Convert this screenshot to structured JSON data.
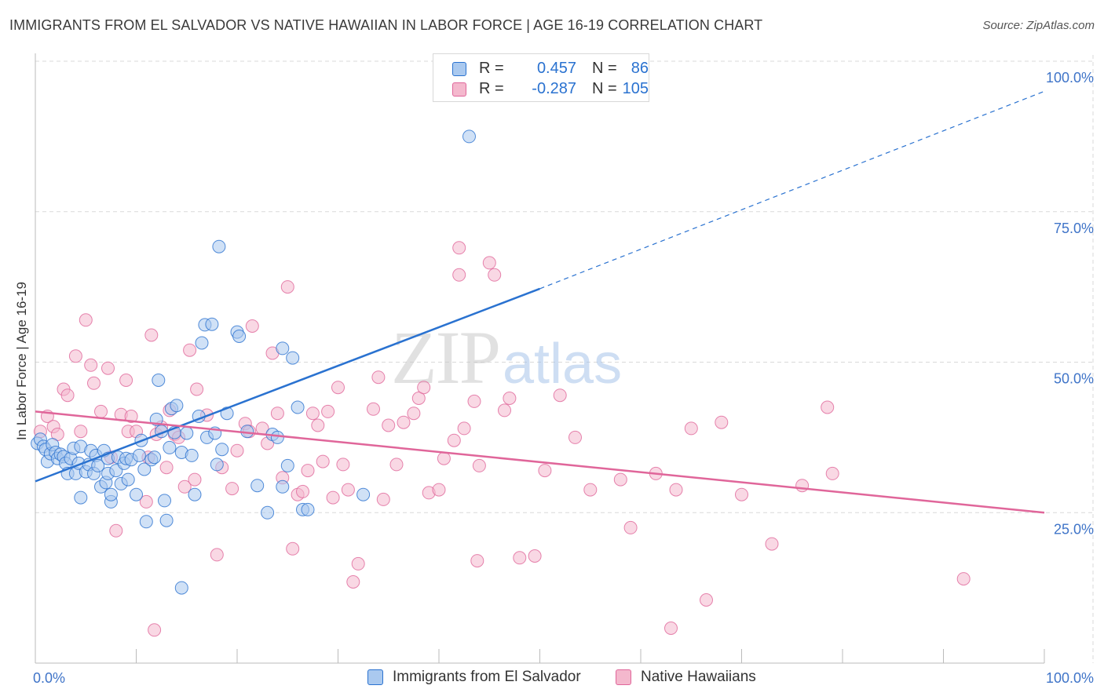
{
  "title": "IMMIGRANTS FROM EL SALVADOR VS NATIVE HAWAIIAN IN LABOR FORCE | AGE 16-19 CORRELATION CHART",
  "source": "Source: ZipAtlas.com",
  "watermark": {
    "zip": "ZIP",
    "atlas": "atlas"
  },
  "legend": {
    "r_label": "R =",
    "n_label": "N =",
    "rows": [
      {
        "r": "0.457",
        "n": "86"
      },
      {
        "r": "-0.287",
        "n": "105"
      }
    ]
  },
  "colors": {
    "blue": "#2a72d0",
    "blue_fill": "#aac9ef",
    "pink": "#e0669a",
    "pink_fill": "#f4b8cd",
    "axis_text": "#3f74c8",
    "grid": "#d9d9d9"
  },
  "chart_data": {
    "type": "scatter",
    "title": "IMMIGRANTS FROM EL SALVADOR VS NATIVE HAWAIIAN IN LABOR FORCE | AGE 16-19 CORRELATION CHART",
    "xlabel": "",
    "ylabel": "In Labor Force | Age 16-19",
    "xlim": [
      0,
      100
    ],
    "ylim": [
      0,
      100
    ],
    "x_tick_labels": [
      "0.0%",
      "100.0%"
    ],
    "y_ticks": [
      {
        "value": 25,
        "label": "25.0%"
      },
      {
        "value": 50,
        "label": "50.0%"
      },
      {
        "value": 75,
        "label": "75.0%"
      },
      {
        "value": 100,
        "label": "100.0%"
      }
    ],
    "grid": true,
    "legend_position": "bottom",
    "series": [
      {
        "name": "Immigrants from El Salvador",
        "r": 0.457,
        "n": 86,
        "trend": {
          "x0": 0,
          "y0": 30.2,
          "x1": 50,
          "y1": 62.2,
          "dashed_to_x": 100,
          "dashed_to_y": 95
        },
        "points": [
          [
            0.2,
            36.5
          ],
          [
            0.5,
            37.2
          ],
          [
            0.8,
            36.0
          ],
          [
            1.0,
            35.5
          ],
          [
            1.2,
            33.5
          ],
          [
            1.5,
            34.8
          ],
          [
            1.7,
            36.3
          ],
          [
            2.0,
            35.0
          ],
          [
            2.2,
            34.0
          ],
          [
            2.5,
            34.7
          ],
          [
            2.8,
            34.3
          ],
          [
            3.0,
            33.2
          ],
          [
            3.2,
            31.5
          ],
          [
            3.5,
            34.0
          ],
          [
            3.8,
            35.7
          ],
          [
            4.0,
            31.5
          ],
          [
            4.3,
            33.2
          ],
          [
            4.5,
            36.0
          ],
          [
            4.5,
            27.5
          ],
          [
            5.0,
            31.8
          ],
          [
            5.3,
            33.0
          ],
          [
            5.5,
            35.3
          ],
          [
            5.8,
            31.5
          ],
          [
            6.0,
            34.5
          ],
          [
            6.2,
            32.8
          ],
          [
            6.5,
            29.3
          ],
          [
            6.8,
            35.3
          ],
          [
            7.0,
            30.0
          ],
          [
            7.2,
            31.5
          ],
          [
            7.5,
            26.8
          ],
          [
            7.2,
            34.0
          ],
          [
            7.5,
            28.0
          ],
          [
            8.0,
            32.0
          ],
          [
            8.2,
            34.2
          ],
          [
            8.5,
            29.8
          ],
          [
            8.8,
            33.2
          ],
          [
            9.0,
            34.0
          ],
          [
            9.2,
            30.5
          ],
          [
            9.5,
            33.8
          ],
          [
            10.0,
            28.0
          ],
          [
            10.3,
            34.5
          ],
          [
            10.5,
            37.0
          ],
          [
            10.8,
            32.2
          ],
          [
            11.0,
            23.5
          ],
          [
            11.5,
            33.8
          ],
          [
            11.8,
            34.2
          ],
          [
            12.0,
            40.5
          ],
          [
            12.2,
            47.0
          ],
          [
            12.5,
            38.5
          ],
          [
            12.8,
            27.0
          ],
          [
            13.0,
            23.7
          ],
          [
            13.3,
            35.8
          ],
          [
            13.5,
            42.3
          ],
          [
            13.8,
            38.3
          ],
          [
            14.0,
            42.8
          ],
          [
            14.5,
            35.0
          ],
          [
            14.5,
            12.5
          ],
          [
            15.0,
            38.2
          ],
          [
            15.5,
            34.5
          ],
          [
            15.8,
            28.0
          ],
          [
            16.2,
            41.0
          ],
          [
            16.5,
            53.2
          ],
          [
            16.8,
            56.2
          ],
          [
            17.0,
            37.5
          ],
          [
            17.5,
            56.3
          ],
          [
            17.8,
            38.2
          ],
          [
            18.0,
            33.0
          ],
          [
            18.2,
            69.2
          ],
          [
            18.5,
            35.5
          ],
          [
            19.0,
            41.5
          ],
          [
            20.0,
            55.0
          ],
          [
            20.2,
            54.3
          ],
          [
            21.0,
            38.5
          ],
          [
            22.0,
            29.5
          ],
          [
            23.0,
            25.0
          ],
          [
            23.5,
            38.0
          ],
          [
            24.0,
            37.5
          ],
          [
            24.5,
            29.3
          ],
          [
            24.5,
            52.3
          ],
          [
            25.0,
            32.8
          ],
          [
            25.5,
            50.7
          ],
          [
            26.0,
            42.5
          ],
          [
            26.5,
            25.5
          ],
          [
            27.0,
            25.5
          ],
          [
            32.5,
            28.0
          ],
          [
            43.0,
            87.5
          ]
        ]
      },
      {
        "name": "Native Hawaiians",
        "r": -0.287,
        "n": 105,
        "trend": {
          "x0": 0,
          "y0": 41.8,
          "x1": 100,
          "y1": 25.0
        },
        "points": [
          [
            0.5,
            38.5
          ],
          [
            1.2,
            41.0
          ],
          [
            1.8,
            39.3
          ],
          [
            2.2,
            38.0
          ],
          [
            2.8,
            45.5
          ],
          [
            3.2,
            44.5
          ],
          [
            4.0,
            51.0
          ],
          [
            4.5,
            38.5
          ],
          [
            5.0,
            57.0
          ],
          [
            5.5,
            49.5
          ],
          [
            5.8,
            46.5
          ],
          [
            6.5,
            41.8
          ],
          [
            7.2,
            49.0
          ],
          [
            7.5,
            34.2
          ],
          [
            8.0,
            22.0
          ],
          [
            8.5,
            41.3
          ],
          [
            9.0,
            47.0
          ],
          [
            9.2,
            38.5
          ],
          [
            9.5,
            41.0
          ],
          [
            10.0,
            38.5
          ],
          [
            11.0,
            26.8
          ],
          [
            11.2,
            34.2
          ],
          [
            11.5,
            54.5
          ],
          [
            11.8,
            5.5
          ],
          [
            12.0,
            38.0
          ],
          [
            12.5,
            39.2
          ],
          [
            13.0,
            32.5
          ],
          [
            13.3,
            42.0
          ],
          [
            13.8,
            38.0
          ],
          [
            14.2,
            37.5
          ],
          [
            14.8,
            29.3
          ],
          [
            15.3,
            52.0
          ],
          [
            15.8,
            30.5
          ],
          [
            16.0,
            45.5
          ],
          [
            17.0,
            41.2
          ],
          [
            18.0,
            18.0
          ],
          [
            18.5,
            32.5
          ],
          [
            19.5,
            29.0
          ],
          [
            20.0,
            35.3
          ],
          [
            20.8,
            39.8
          ],
          [
            21.2,
            38.5
          ],
          [
            21.5,
            56.0
          ],
          [
            22.5,
            39.0
          ],
          [
            23.0,
            36.5
          ],
          [
            23.5,
            51.5
          ],
          [
            24.0,
            41.5
          ],
          [
            24.5,
            30.8
          ],
          [
            25.0,
            62.5
          ],
          [
            25.5,
            19.0
          ],
          [
            26.0,
            28.0
          ],
          [
            26.5,
            28.5
          ],
          [
            27.0,
            32.0
          ],
          [
            27.5,
            41.5
          ],
          [
            28.0,
            39.5
          ],
          [
            28.5,
            33.5
          ],
          [
            29.0,
            41.8
          ],
          [
            29.5,
            27.5
          ],
          [
            30.0,
            45.8
          ],
          [
            30.5,
            33.0
          ],
          [
            31.0,
            28.8
          ],
          [
            31.5,
            13.5
          ],
          [
            32.0,
            16.5
          ],
          [
            33.5,
            42.2
          ],
          [
            34.0,
            47.5
          ],
          [
            34.5,
            27.2
          ],
          [
            35.0,
            39.5
          ],
          [
            35.8,
            33.0
          ],
          [
            36.5,
            40.0
          ],
          [
            37.5,
            41.5
          ],
          [
            38.0,
            44.0
          ],
          [
            38.5,
            45.8
          ],
          [
            39.0,
            28.3
          ],
          [
            40.0,
            28.8
          ],
          [
            40.5,
            34.0
          ],
          [
            41.5,
            37.0
          ],
          [
            42.0,
            69.0
          ],
          [
            42.0,
            64.5
          ],
          [
            42.5,
            39.0
          ],
          [
            43.5,
            43.5
          ],
          [
            43.8,
            17.0
          ],
          [
            44.0,
            32.8
          ],
          [
            45.0,
            66.5
          ],
          [
            45.5,
            64.5
          ],
          [
            46.5,
            42.0
          ],
          [
            47.0,
            44.0
          ],
          [
            48.0,
            17.5
          ],
          [
            49.5,
            17.8
          ],
          [
            50.5,
            32.0
          ],
          [
            52.0,
            44.5
          ],
          [
            53.5,
            37.5
          ],
          [
            55.0,
            28.8
          ],
          [
            58.0,
            30.5
          ],
          [
            59.0,
            22.5
          ],
          [
            61.5,
            31.5
          ],
          [
            63.0,
            5.8
          ],
          [
            63.5,
            28.8
          ],
          [
            65.0,
            39.0
          ],
          [
            66.5,
            10.5
          ],
          [
            68.0,
            40.0
          ],
          [
            70.0,
            28.0
          ],
          [
            73.0,
            19.8
          ],
          [
            76.0,
            29.5
          ],
          [
            78.5,
            42.5
          ],
          [
            79.0,
            31.5
          ],
          [
            92.0,
            14.0
          ]
        ]
      }
    ]
  }
}
